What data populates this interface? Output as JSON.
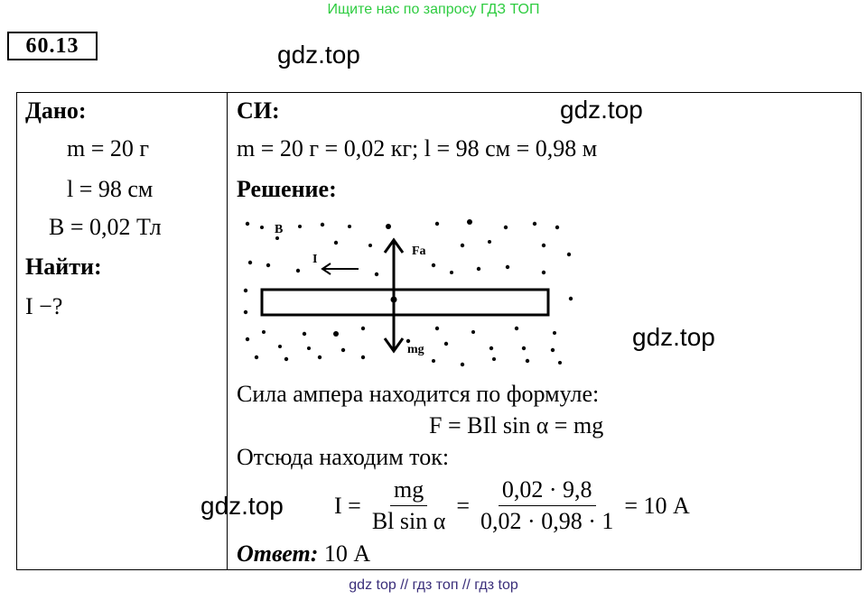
{
  "banner": "Ищите нас по запросу ГДЗ ТОП",
  "problem_number": "60.13",
  "watermark": "gdz.top",
  "given": {
    "heading": "Дано:",
    "lines": [
      "m = 20 г",
      "l = 98 см",
      "B = 0,02 Тл"
    ],
    "find_heading": "Найти:",
    "find": "I −?"
  },
  "si": {
    "heading": "СИ:",
    "line": "m = 20 г = 0,02 кг; l = 98 см = 0,98 м"
  },
  "solution": {
    "heading": "Решение:",
    "diagram": {
      "label_b": "B",
      "label_i": "I",
      "label_fa": "Fa",
      "label_mg": "mg"
    },
    "text1": "Сила ампера находится по формуле:",
    "formula1": "F = BIl sin α = mg",
    "text2": "Отсюда находим ток:",
    "formula2": {
      "lhs": "I =",
      "frac1_num": "mg",
      "frac1_den": "Bl sin α",
      "eq": "=",
      "frac2_num": "0,02 · 9,8",
      "frac2_den": "0,02 · 0,98 · 1",
      "result": "= 10 А"
    },
    "answer_label": "Ответ:",
    "answer_value": "10 А"
  },
  "footer_links": "gdz top  //  гдз топ  //  гдз top"
}
